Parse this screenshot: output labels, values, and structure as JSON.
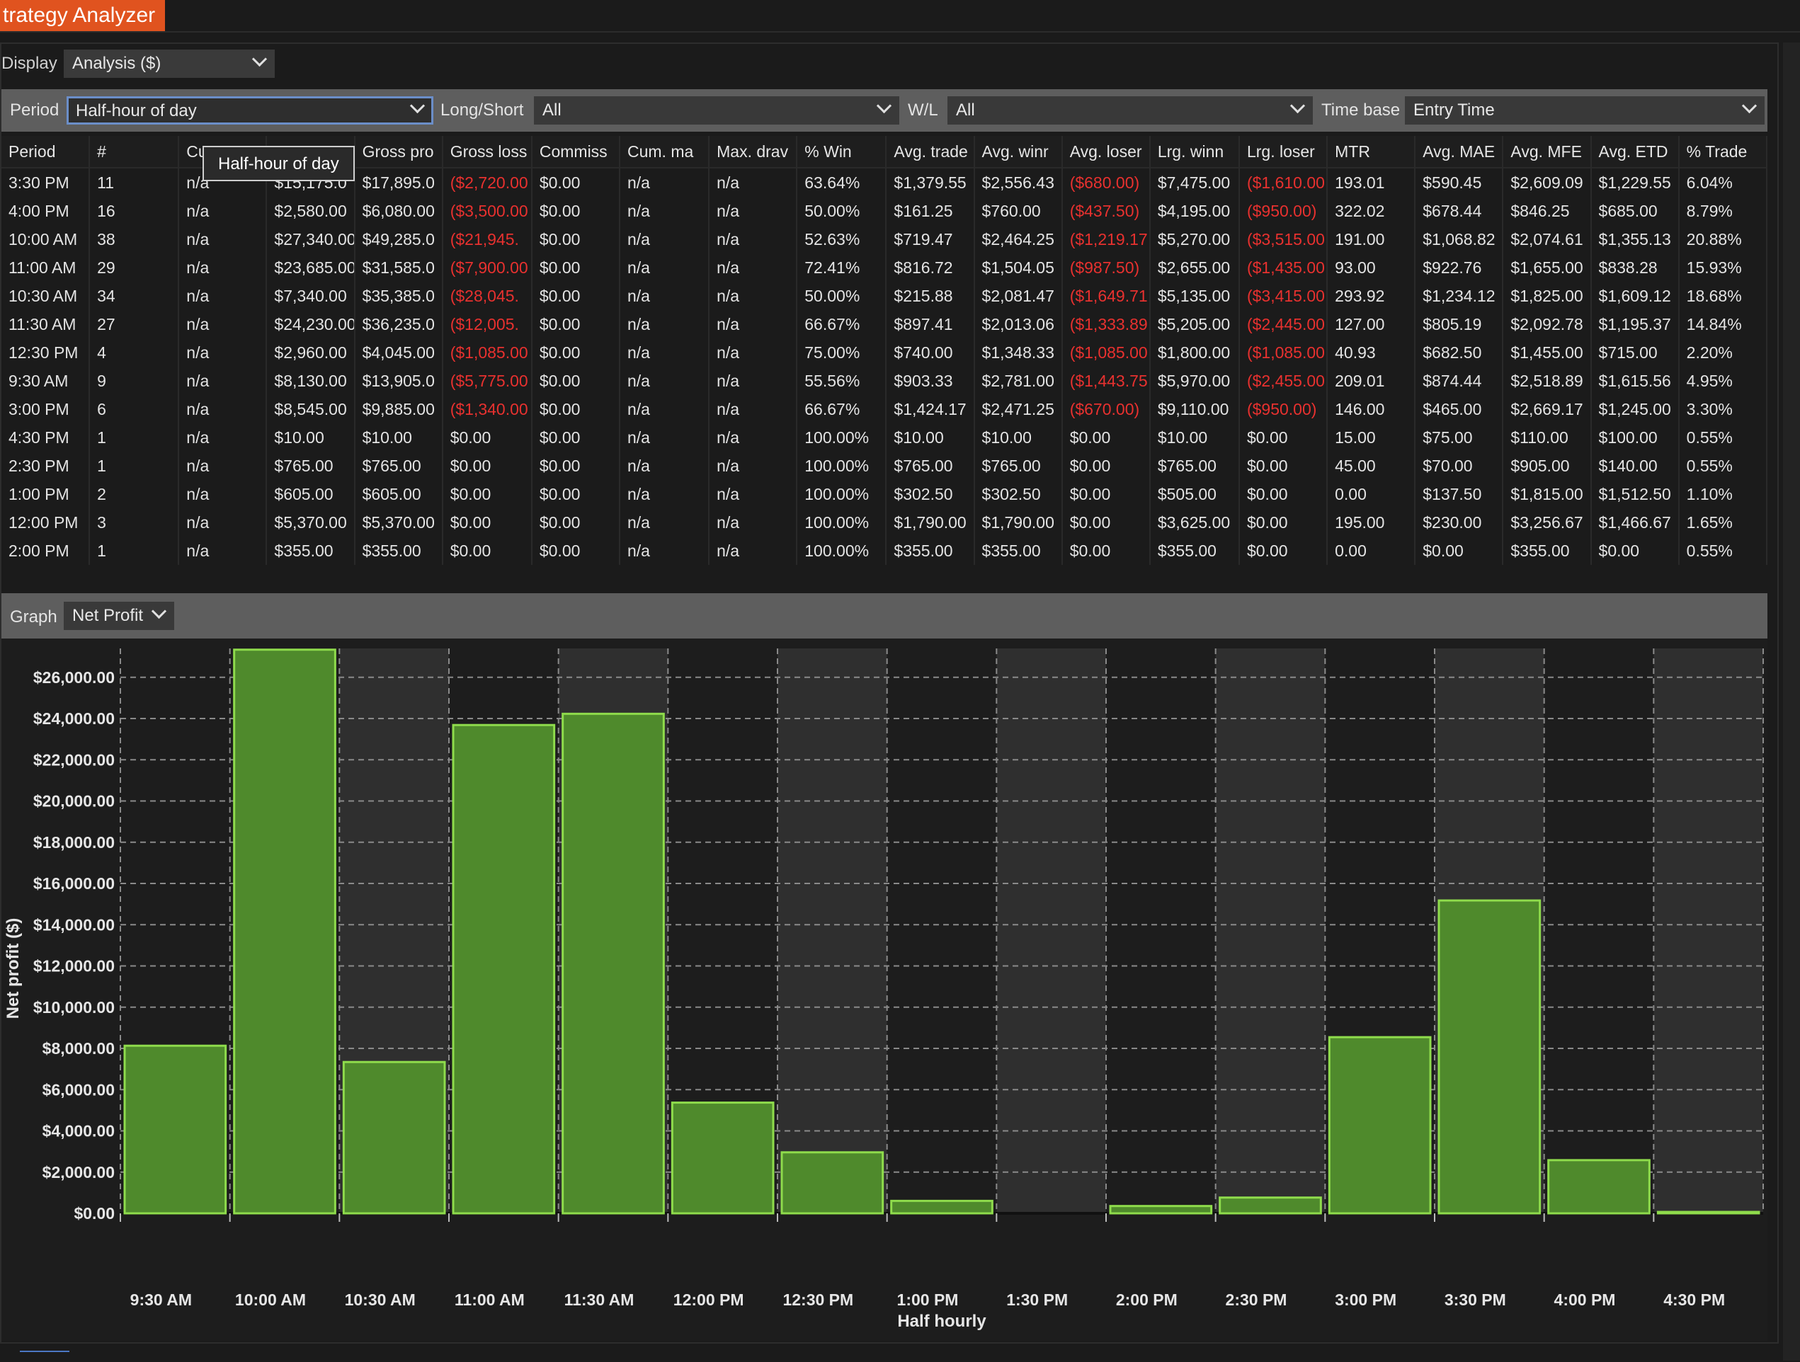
{
  "window": {
    "title": "trategy Analyzer"
  },
  "display": {
    "label": "Display",
    "value": "Analysis ($)"
  },
  "filters": {
    "period": {
      "label": "Period",
      "value": "Half-hour of day"
    },
    "long_short": {
      "label": "Long/Short",
      "value": "All"
    },
    "wl": {
      "label": "W/L",
      "value": "All"
    },
    "time_base": {
      "label": "Time base",
      "value": "Entry Time"
    }
  },
  "tooltip": "Half-hour of day",
  "table": {
    "columns": [
      "Period",
      "#",
      "Cu",
      "",
      "Gross pro",
      "Gross loss",
      "Commiss",
      "Cum. ma",
      "Max. drav",
      "% Win",
      "Avg. trade",
      "Avg. winr",
      "Avg. loser",
      "Lrg. winn",
      "Lrg. loser",
      "MTR",
      "Avg. MAE",
      "Avg. MFE",
      "Avg. ETD",
      "% Trade"
    ],
    "rows": [
      [
        "3:30 PM",
        "11",
        "n/a",
        "$15,175.0",
        "$17,895.0",
        "($2,720.00",
        "$0.00",
        "n/a",
        "n/a",
        "63.64%",
        "$1,379.55",
        "$2,556.43",
        "($680.00)",
        "$7,475.00",
        "($1,610.00",
        "193.01",
        "$590.45",
        "$2,609.09",
        "$1,229.55",
        "6.04%"
      ],
      [
        "4:00 PM",
        "16",
        "n/a",
        "$2,580.00",
        "$6,080.00",
        "($3,500.00",
        "$0.00",
        "n/a",
        "n/a",
        "50.00%",
        "$161.25",
        "$760.00",
        "($437.50)",
        "$4,195.00",
        "($950.00)",
        "322.02",
        "$678.44",
        "$846.25",
        "$685.00",
        "8.79%"
      ],
      [
        "10:00 AM",
        "38",
        "n/a",
        "$27,340.00",
        "$49,285.0",
        "($21,945.",
        "$0.00",
        "n/a",
        "n/a",
        "52.63%",
        "$719.47",
        "$2,464.25",
        "($1,219.17",
        "$5,270.00",
        "($3,515.00",
        "191.00",
        "$1,068.82",
        "$2,074.61",
        "$1,355.13",
        "20.88%"
      ],
      [
        "11:00 AM",
        "29",
        "n/a",
        "$23,685.00",
        "$31,585.0",
        "($7,900.00",
        "$0.00",
        "n/a",
        "n/a",
        "72.41%",
        "$816.72",
        "$1,504.05",
        "($987.50)",
        "$2,655.00",
        "($1,435.00",
        "93.00",
        "$922.76",
        "$1,655.00",
        "$838.28",
        "15.93%"
      ],
      [
        "10:30 AM",
        "34",
        "n/a",
        "$7,340.00",
        "$35,385.0",
        "($28,045.",
        "$0.00",
        "n/a",
        "n/a",
        "50.00%",
        "$215.88",
        "$2,081.47",
        "($1,649.71",
        "$5,135.00",
        "($3,415.00",
        "293.92",
        "$1,234.12",
        "$1,825.00",
        "$1,609.12",
        "18.68%"
      ],
      [
        "11:30 AM",
        "27",
        "n/a",
        "$24,230.00",
        "$36,235.0",
        "($12,005.",
        "$0.00",
        "n/a",
        "n/a",
        "66.67%",
        "$897.41",
        "$2,013.06",
        "($1,333.89",
        "$5,205.00",
        "($2,445.00",
        "127.00",
        "$805.19",
        "$2,092.78",
        "$1,195.37",
        "14.84%"
      ],
      [
        "12:30 PM",
        "4",
        "n/a",
        "$2,960.00",
        "$4,045.00",
        "($1,085.00",
        "$0.00",
        "n/a",
        "n/a",
        "75.00%",
        "$740.00",
        "$1,348.33",
        "($1,085.00",
        "$1,800.00",
        "($1,085.00",
        "40.93",
        "$682.50",
        "$1,455.00",
        "$715.00",
        "2.20%"
      ],
      [
        "9:30 AM",
        "9",
        "n/a",
        "$8,130.00",
        "$13,905.0",
        "($5,775.00",
        "$0.00",
        "n/a",
        "n/a",
        "55.56%",
        "$903.33",
        "$2,781.00",
        "($1,443.75",
        "$5,970.00",
        "($2,455.00",
        "209.01",
        "$874.44",
        "$2,518.89",
        "$1,615.56",
        "4.95%"
      ],
      [
        "3:00 PM",
        "6",
        "n/a",
        "$8,545.00",
        "$9,885.00",
        "($1,340.00",
        "$0.00",
        "n/a",
        "n/a",
        "66.67%",
        "$1,424.17",
        "$2,471.25",
        "($670.00)",
        "$9,110.00",
        "($950.00)",
        "146.00",
        "$465.00",
        "$2,669.17",
        "$1,245.00",
        "3.30%"
      ],
      [
        "4:30 PM",
        "1",
        "n/a",
        "$10.00",
        "$10.00",
        "$0.00",
        "$0.00",
        "n/a",
        "n/a",
        "100.00%",
        "$10.00",
        "$10.00",
        "$0.00",
        "$10.00",
        "$0.00",
        "15.00",
        "$75.00",
        "$110.00",
        "$100.00",
        "0.55%"
      ],
      [
        "2:30 PM",
        "1",
        "n/a",
        "$765.00",
        "$765.00",
        "$0.00",
        "$0.00",
        "n/a",
        "n/a",
        "100.00%",
        "$765.00",
        "$765.00",
        "$0.00",
        "$765.00",
        "$0.00",
        "45.00",
        "$70.00",
        "$905.00",
        "$140.00",
        "0.55%"
      ],
      [
        "1:00 PM",
        "2",
        "n/a",
        "$605.00",
        "$605.00",
        "$0.00",
        "$0.00",
        "n/a",
        "n/a",
        "100.00%",
        "$302.50",
        "$302.50",
        "$0.00",
        "$505.00",
        "$0.00",
        "0.00",
        "$137.50",
        "$1,815.00",
        "$1,512.50",
        "1.10%"
      ],
      [
        "12:00 PM",
        "3",
        "n/a",
        "$5,370.00",
        "$5,370.00",
        "$0.00",
        "$0.00",
        "n/a",
        "n/a",
        "100.00%",
        "$1,790.00",
        "$1,790.00",
        "$0.00",
        "$3,625.00",
        "$0.00",
        "195.00",
        "$230.00",
        "$3,256.67",
        "$1,466.67",
        "1.65%"
      ],
      [
        "2:00 PM",
        "1",
        "n/a",
        "$355.00",
        "$355.00",
        "$0.00",
        "$0.00",
        "n/a",
        "n/a",
        "100.00%",
        "$355.00",
        "$355.00",
        "$0.00",
        "$355.00",
        "$0.00",
        "0.00",
        "$0.00",
        "$355.00",
        "$0.00",
        "0.55%"
      ]
    ]
  },
  "graph": {
    "label": "Graph",
    "value": "Net Profit"
  },
  "colors": {
    "bar_fill": "#4f8a2c",
    "bar_stroke": "#8fdc4c",
    "band": "#2f2f2f",
    "negative": "#e8312f"
  },
  "chart_data": {
    "type": "bar",
    "categories": [
      "9:30 AM",
      "10:00 AM",
      "10:30 AM",
      "11:00 AM",
      "11:30 AM",
      "12:00 PM",
      "12:30 PM",
      "1:00 PM",
      "1:30 PM",
      "2:00 PM",
      "2:30 PM",
      "3:00 PM",
      "3:30 PM",
      "4:00 PM",
      "4:30 PM"
    ],
    "values": [
      8130,
      27340,
      7340,
      23685,
      24230,
      5370,
      2960,
      605,
      0,
      355,
      765,
      8545,
      15175,
      2580,
      10
    ],
    "ylim": [
      0,
      27400
    ],
    "yticks": [
      "$0.00",
      "$2,000.00",
      "$4,000.00",
      "$6,000.00",
      "$8,000.00",
      "$10,000.00",
      "$12,000.00",
      "$14,000.00",
      "$16,000.00",
      "$18,000.00",
      "$20,000.00",
      "$22,000.00",
      "$24,000.00",
      "$26,000.00"
    ],
    "xlabel": "Half hourly",
    "ylabel": "Net profit ($)",
    "grid": true
  }
}
